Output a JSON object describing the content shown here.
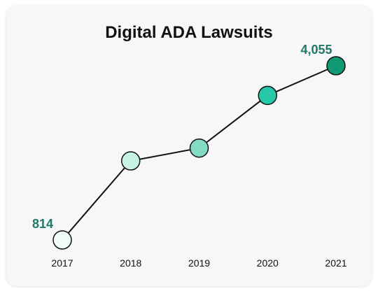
{
  "chart_data": {
    "type": "line",
    "title": "Digital ADA Lawsuits",
    "xlabel": "",
    "ylabel": "",
    "categories": [
      "2017",
      "2018",
      "2019",
      "2020",
      "2021"
    ],
    "values": [
      814,
      2285,
      2523,
      3503,
      4055
    ],
    "ylim": [
      814,
      4055
    ],
    "data_labels": [
      {
        "index": 0,
        "text": "814"
      },
      {
        "index": 4,
        "text": "4,055"
      }
    ],
    "grid": false,
    "legend": "none",
    "point_colors": [
      "#eefbf7",
      "#c6f3e6",
      "#82dcc3",
      "#26c9a7",
      "#0f9a75"
    ],
    "line_color": "#111111",
    "label_color": "#1f7a62"
  }
}
